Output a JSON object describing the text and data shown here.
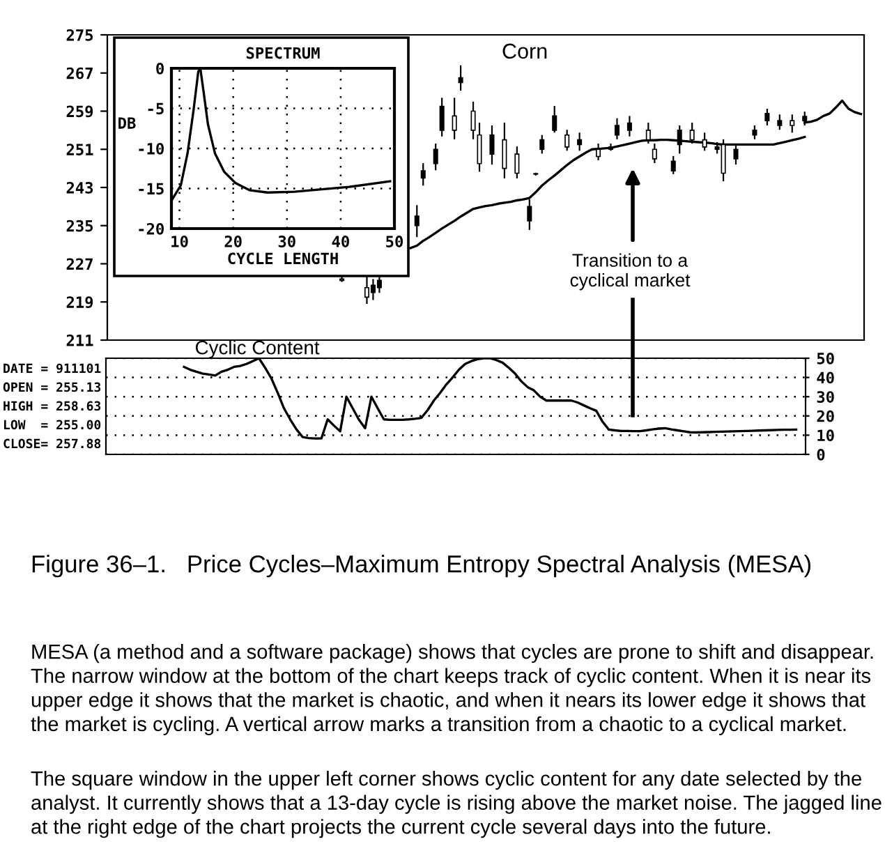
{
  "chart_data": [
    {
      "type": "candlestick",
      "categories": [
        null,
        null,
        null,
        null,
        null,
        null,
        null,
        null,
        null,
        null,
        null,
        null,
        null,
        null,
        null,
        null,
        null,
        null,
        null,
        null,
        null,
        null,
        null,
        null,
        null,
        null,
        null,
        null,
        null,
        null,
        null,
        null,
        null,
        null,
        null,
        null,
        null,
        null,
        null,
        null,
        null,
        null,
        null,
        null,
        null,
        null,
        null,
        null,
        null,
        null,
        null,
        null,
        null,
        null,
        null,
        null,
        null,
        null,
        null,
        null,
        null,
        null,
        null,
        null,
        null,
        null,
        null,
        null,
        null,
        null,
        null,
        null,
        null,
        null,
        null,
        null,
        null,
        null,
        null,
        null,
        null,
        null,
        null,
        null,
        null,
        null,
        null,
        null,
        null,
        null,
        null,
        null,
        null,
        null,
        null,
        null,
        null,
        null,
        null,
        null,
        null,
        null,
        null,
        null,
        null,
        null,
        null,
        null,
        null,
        null,
        null,
        null,
        null,
        null,
        null,
        null,
        null,
        null,
        null,
        null,
        null
      ],
      "ohlc": [
        null,
        null,
        null,
        null,
        null,
        null,
        null,
        null,
        null,
        null,
        null,
        null,
        null,
        null,
        null,
        null,
        null,
        null,
        null,
        null,
        null,
        null,
        null,
        null,
        null,
        null,
        null,
        null,
        null,
        null,
        null,
        null,
        null,
        null,
        null,
        null,
        null,
        [
          223.8,
          224.4,
          223.2,
          223.5
        ],
        null,
        null,
        null,
        [
          222,
          224.4,
          218.6,
          220
        ],
        [
          221,
          223.8,
          219.4,
          222.5
        ],
        [
          222,
          224.7,
          220.9,
          223.5
        ],
        null,
        null,
        null,
        null,
        null,
        [
          235,
          239.3,
          232.6,
          237
        ],
        [
          245,
          248.1,
          243.4,
          246.5
        ],
        null,
        [
          248,
          252.2,
          246.6,
          251
        ],
        [
          255,
          261.8,
          253.7,
          260
        ],
        null,
        [
          258,
          261.8,
          253.1,
          255
        ],
        [
          265,
          268.6,
          263.3,
          266
        ],
        null,
        [
          259,
          261,
          253.1,
          255
        ],
        [
          254,
          256.6,
          246.3,
          248
        ],
        null,
        [
          250,
          256,
          247.8,
          254
        ],
        null,
        [
          253,
          256.6,
          244.9,
          247
        ],
        null,
        [
          250,
          251.6,
          244.9,
          246
        ],
        null,
        [
          236,
          240.5,
          234.1,
          239
        ],
        [
          245.8,
          246.1,
          245.5,
          245.9
        ],
        [
          251,
          254,
          250.1,
          253
        ],
        null,
        [
          255,
          260.1,
          254.5,
          258
        ],
        null,
        [
          254,
          255.1,
          250.7,
          251.5
        ],
        null,
        [
          252,
          254.5,
          250.7,
          253
        ],
        null,
        null,
        [
          251,
          252.2,
          248.7,
          249.5
        ],
        null,
        [
          251,
          252.2,
          250.7,
          251.5
        ],
        [
          254,
          257.5,
          253.1,
          256
        ],
        null,
        [
          255,
          258,
          253.7,
          256.5
        ],
        null,
        null,
        [
          255,
          256.6,
          252.2,
          253
        ],
        [
          251,
          252.2,
          248.1,
          249
        ],
        null,
        null,
        [
          246.5,
          249.6,
          245.8,
          248.5
        ],
        [
          252,
          256,
          250.1,
          255
        ],
        null,
        [
          255,
          256.6,
          252.2,
          253
        ],
        null,
        [
          253,
          254.5,
          250.7,
          251.5
        ],
        null,
        [
          251,
          252.5,
          250.1,
          251.5
        ],
        [
          252,
          253.1,
          244.3,
          246
        ],
        null,
        [
          249,
          252.2,
          247.8,
          251
        ],
        null,
        null,
        [
          254,
          256,
          253.1,
          255
        ],
        null,
        [
          257,
          259.5,
          256,
          258.5
        ],
        null,
        [
          256,
          258.3,
          255.1,
          257
        ],
        null,
        [
          257,
          258.3,
          254.5,
          256
        ],
        null,
        [
          257,
          258.9,
          256,
          257.9
        ],
        null,
        null,
        null,
        null,
        null,
        null,
        null,
        null,
        null
      ],
      "series": [
        {
          "type": "line",
          "color": "#000000",
          "values": [
            null,
            null,
            null,
            null,
            null,
            null,
            null,
            null,
            null,
            null,
            null,
            null,
            null,
            null,
            null,
            null,
            null,
            null,
            null,
            null,
            null,
            null,
            null,
            null,
            null,
            null,
            null,
            null,
            null,
            null,
            null,
            null,
            null,
            null,
            null,
            null,
            null,
            null,
            null,
            null,
            null,
            null,
            null,
            null,
            null,
            null,
            null,
            null,
            230.3,
            230.8,
            231.8,
            232.6,
            233.5,
            234.4,
            235.2,
            236,
            236.9,
            237.7,
            238.5,
            238.8,
            239.1,
            239.3,
            239.6,
            239.8,
            240,
            240.3,
            240.5,
            240.8,
            242,
            243.4,
            244.5,
            245.5,
            246.6,
            247.7,
            248.7,
            249.5,
            250.3,
            251,
            251.1,
            251.2,
            251.3,
            251.6,
            251.9,
            252.2,
            252.5,
            252.8,
            252.9,
            252.9,
            253,
            253,
            252.9,
            252.8,
            252.7,
            252.6,
            252.5,
            252.4,
            252.3,
            252.1,
            252,
            252,
            252,
            252,
            252,
            252,
            252,
            252,
            252,
            252.3,
            252.6,
            252.9,
            253.2,
            253.6,
            null,
            null,
            null,
            null,
            null,
            null,
            null,
            null,
            null
          ]
        },
        {
          "type": "line",
          "color": "#000000",
          "values": [
            null,
            null,
            null,
            null,
            null,
            null,
            null,
            null,
            null,
            null,
            null,
            null,
            null,
            null,
            null,
            null,
            null,
            null,
            null,
            null,
            null,
            null,
            null,
            null,
            null,
            null,
            null,
            null,
            null,
            null,
            null,
            null,
            null,
            null,
            null,
            null,
            null,
            null,
            null,
            null,
            null,
            null,
            null,
            null,
            null,
            null,
            null,
            null,
            null,
            null,
            null,
            null,
            null,
            null,
            null,
            null,
            null,
            null,
            null,
            null,
            null,
            null,
            null,
            null,
            null,
            null,
            null,
            null,
            null,
            null,
            null,
            null,
            null,
            null,
            null,
            null,
            null,
            null,
            null,
            null,
            null,
            null,
            null,
            null,
            null,
            null,
            null,
            null,
            null,
            null,
            null,
            null,
            null,
            null,
            null,
            null,
            null,
            null,
            null,
            null,
            null,
            null,
            null,
            null,
            null,
            null,
            null,
            null,
            null,
            null,
            null,
            256.6,
            256.8,
            257.2,
            258,
            258.5,
            259.8,
            261.2,
            259.5,
            258.8,
            258.4
          ]
        }
      ],
      "ylim": [
        211,
        275
      ],
      "yticks": [
        211,
        219,
        227,
        235,
        243,
        251,
        259,
        267,
        275
      ],
      "tick_labels": "y",
      "annotations": [
        "Corn",
        "Transition to a\ncyclical market"
      ]
    },
    {
      "type": "line",
      "title": "SPECTRUM",
      "xlabel": "CYCLE LENGTH",
      "ylabel": "DB",
      "x": [
        8.7,
        10.25,
        11.5,
        12.6,
        13.5,
        13.9,
        14.5,
        15.3,
        16.6,
        18.3,
        20.4,
        23,
        26.4,
        31.4,
        36.5,
        41.6,
        49.2
      ],
      "series": [
        {
          "color": "#000000",
          "values": [
            -16.3,
            -14.6,
            -10.6,
            -5.3,
            -0.4,
            -0.1,
            -3,
            -7,
            -10.6,
            -12.9,
            -14.3,
            -15.2,
            -15.5,
            -15.4,
            -15.1,
            -14.8,
            -14.1
          ]
        }
      ],
      "xlim": [
        8.5,
        50
      ],
      "xticks": [
        10,
        20,
        30,
        40,
        50
      ],
      "ylim": [
        -20,
        0
      ],
      "yticks": [
        0,
        -5,
        -10,
        -15,
        -20
      ],
      "grid": true
    },
    {
      "type": "line",
      "title": "Cyclic Content",
      "categories": [
        null,
        null,
        null,
        null,
        null,
        null,
        null,
        null,
        null,
        null,
        null,
        null,
        null,
        null,
        null,
        null,
        null,
        null,
        null,
        null,
        null,
        null,
        null,
        null,
        null,
        null,
        null,
        null,
        null,
        null,
        null,
        null,
        null,
        null,
        null,
        null,
        null,
        null,
        null,
        null,
        null,
        null,
        null,
        null,
        null,
        null,
        null,
        null,
        null,
        null,
        null,
        null,
        null,
        null,
        null,
        null,
        null,
        null,
        null,
        null,
        null,
        null,
        null,
        null,
        null,
        null,
        null,
        null,
        null,
        null,
        null,
        null,
        null,
        null,
        null,
        null,
        null,
        null,
        null,
        null,
        null,
        null,
        null,
        null,
        null,
        null,
        null,
        null,
        null,
        null,
        null,
        null,
        null,
        null,
        null,
        null,
        null,
        null,
        null,
        null,
        null,
        null,
        null,
        null,
        null,
        null,
        null,
        null,
        null,
        null,
        null,
        null
      ],
      "series": [
        {
          "color": "#000000",
          "values": [
            null,
            null,
            null,
            null,
            null,
            null,
            null,
            null,
            null,
            null,
            null,
            null,
            45.5,
            44,
            43,
            42,
            41.5,
            41,
            43,
            44,
            45.5,
            46,
            47,
            48.5,
            50,
            45,
            39.4,
            32,
            24,
            18.2,
            13,
            9,
            8.5,
            8.3,
            8.3,
            18.2,
            15,
            12,
            30,
            24,
            18,
            13.6,
            30,
            24,
            18.2,
            18,
            18,
            18,
            18.2,
            18.5,
            19,
            23,
            28,
            32,
            36.4,
            40,
            44,
            47,
            48.5,
            49.5,
            50,
            50,
            49,
            47.7,
            45,
            42,
            38,
            35,
            33.3,
            30,
            28,
            28,
            28,
            28,
            28,
            27,
            25.5,
            24,
            22.7,
            17,
            12.9,
            12.5,
            12.2,
            12.2,
            12.1,
            12.1,
            12.5,
            13,
            13.4,
            13.6,
            13,
            12.5,
            12,
            11.5,
            11.4,
            11.5,
            11.6,
            11.7,
            11.8,
            11.9,
            12,
            12.1,
            12.2,
            12.3,
            12.4,
            12.5,
            12.6,
            12.7,
            12.8,
            12.8,
            12.9,
            null
          ]
        }
      ],
      "ylim": [
        0,
        50
      ],
      "yticks": [
        0,
        10,
        20,
        30,
        40,
        50
      ],
      "grid": "y",
      "tick_labels": "y",
      "annotations": [
        "DATE = 911101",
        "OPEN = 255.13",
        "HIGH = 258.63",
        "LOW  = 255.00",
        "CLOSE= 257.88",
        "Figure 36–1.   Price Cycles–Maximum Entropy Spectral Analysis (MESA)",
        "MESA (a method and a software package) shows that cycles are prone to shift and disappear. The narrow window at the bottom of the chart keeps track of cyclic content. When it is near its upper edge it shows that the market is chaotic, and when it nears its lower edge it shows that the market is cycling. A vertical arrow marks a transition from a chaotic to a cyclical market.",
        "The square window in the upper left corner shows cyclic content for any date selected by the analyst. It currently shows that a 13-day cycle is rising above the market noise. The jagged line at the right edge of the chart projects the current cycle several days into the future."
      ]
    }
  ]
}
